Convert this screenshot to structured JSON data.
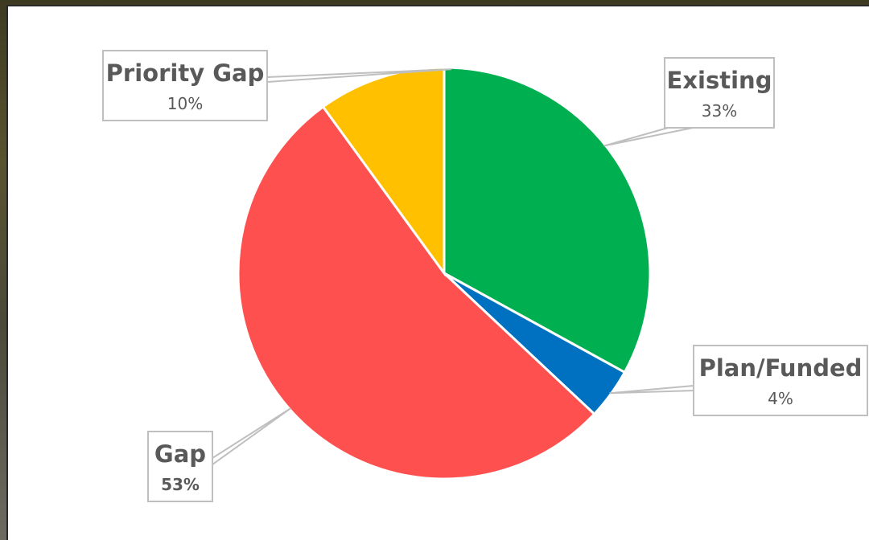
{
  "chart_data": {
    "type": "pie",
    "slices": [
      {
        "label": "Existing",
        "pct_label": "33%",
        "value": 33,
        "color": "#00b050"
      },
      {
        "label": "Plan/Funded",
        "pct_label": "4%",
        "value": 4,
        "color": "#0070c0"
      },
      {
        "label": "Gap",
        "pct_label": "53%",
        "value": 53,
        "color": "#ff5050"
      },
      {
        "label": "Priority Gap",
        "pct_label": "10%",
        "value": 10,
        "color": "#ffc000"
      }
    ],
    "title": "",
    "legend": "none"
  }
}
